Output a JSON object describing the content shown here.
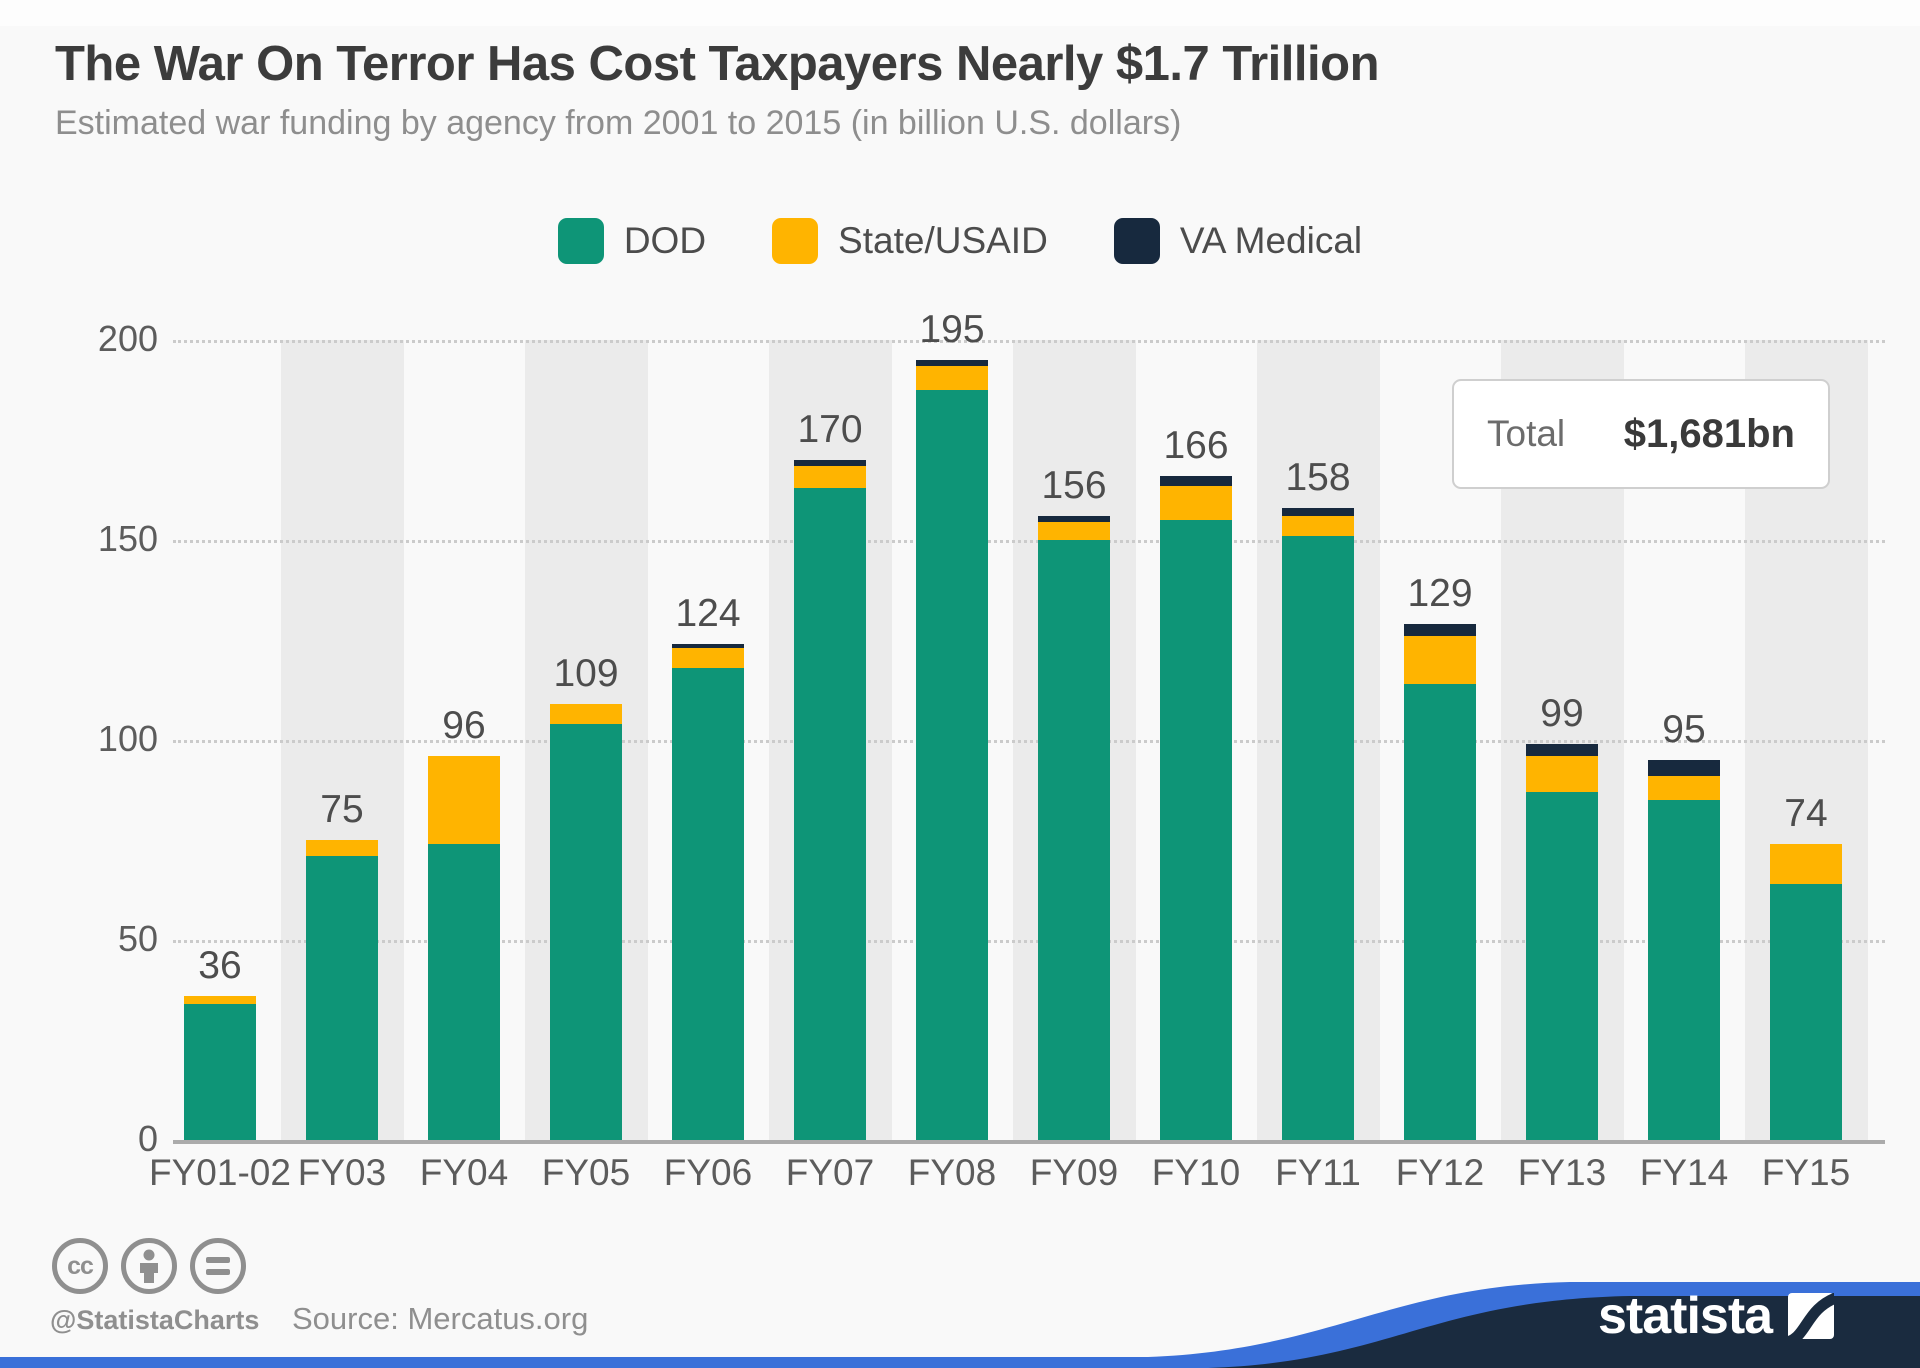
{
  "header": {
    "title": "The War On Terror Has Cost Taxpayers Nearly $1.7 Trillion",
    "subtitle": "Estimated war funding by agency from 2001 to 2015 (in billion U.S. dollars)"
  },
  "legend": {
    "items": [
      {
        "label": "DOD",
        "color": "#0e9577"
      },
      {
        "label": "State/USAID",
        "color": "#ffb400"
      },
      {
        "label": "VA Medical",
        "color": "#17293e"
      }
    ]
  },
  "total_box": {
    "label": "Total",
    "value": "$1,681bn"
  },
  "chart_data": {
    "type": "bar",
    "stacked": true,
    "title": "The War On Terror Has Cost Taxpayers Nearly $1.7 Trillion",
    "subtitle": "Estimated war funding by agency from 2001 to 2015 (in billion U.S. dollars)",
    "categories": [
      "FY01-02",
      "FY03",
      "FY04",
      "FY05",
      "FY06",
      "FY07",
      "FY08",
      "FY09",
      "FY10",
      "FY11",
      "FY12",
      "FY13",
      "FY14",
      "FY15"
    ],
    "series": [
      {
        "name": "DOD",
        "color": "#0e9577",
        "values": [
          34,
          71,
          74,
          104,
          118,
          163,
          187.5,
          150,
          155,
          151,
          114,
          87,
          85,
          64
        ]
      },
      {
        "name": "State/USAID",
        "color": "#ffb400",
        "values": [
          2,
          4,
          22,
          5,
          5,
          5.5,
          6,
          4.5,
          8.5,
          5,
          12,
          9,
          6,
          10
        ]
      },
      {
        "name": "VA Medical",
        "color": "#17293e",
        "values": [
          0,
          0,
          0,
          0,
          1,
          1.5,
          1.5,
          1.5,
          2.5,
          2,
          3,
          3,
          4,
          0
        ]
      }
    ],
    "totals": [
      36,
      75,
      96,
      109,
      124,
      170,
      195,
      156,
      166,
      158,
      129,
      99,
      95,
      74
    ],
    "xlabel": "",
    "ylabel": "",
    "ylim": [
      0,
      200
    ],
    "yticks": [
      0,
      50,
      100,
      150,
      200
    ],
    "grid": "dotted horizontal",
    "legend_position": "top",
    "band_color": "#ebebeb"
  },
  "footer": {
    "handle": "@StatistaCharts",
    "source": "Source: Mercatus.org",
    "cc_text": "cc",
    "icons": [
      "cc-icon",
      "attribution-icon",
      "no-derivatives-icon"
    ],
    "brand": "statista",
    "accent_blue": "#3a70d9",
    "wave_navy": "#1a2b3f"
  }
}
